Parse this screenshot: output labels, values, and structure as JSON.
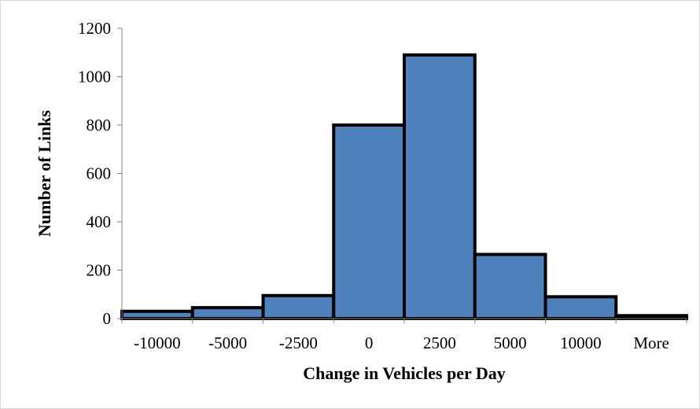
{
  "chart_data": {
    "type": "bar",
    "title": "",
    "xlabel": "Change in Vehicles per Day",
    "ylabel": "Number of Links",
    "categories": [
      "-10000",
      "-5000",
      "-2500",
      "0",
      "2500",
      "5000",
      "10000",
      "More"
    ],
    "values": [
      30,
      45,
      95,
      800,
      1090,
      265,
      90,
      12
    ],
    "ylim": [
      0,
      1200
    ],
    "yticks": [
      "0",
      "200",
      "400",
      "600",
      "800",
      "1000",
      "1200"
    ],
    "grid": false,
    "legend": "none",
    "colors": {
      "bar_fill": "#4f81bd",
      "bar_edge": "#000000",
      "axis": "#808080"
    }
  }
}
